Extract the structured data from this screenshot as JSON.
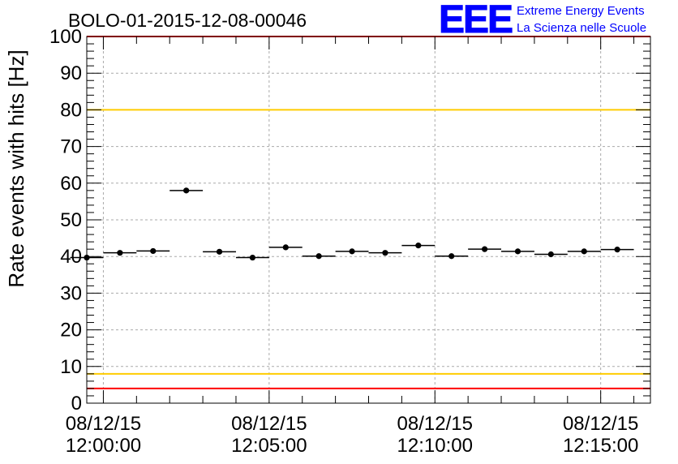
{
  "chart_data": {
    "type": "scatter",
    "title": "BOLO-01-2015-12-08-00046",
    "ylabel": "Rate events with hits [Hz]",
    "xlabel": "",
    "ylim": [
      0,
      100
    ],
    "yticks": [
      0,
      10,
      20,
      30,
      40,
      50,
      60,
      70,
      80,
      90,
      100
    ],
    "xlim": [
      "08/12/15 11:59:30",
      "08/12/15 12:16:30"
    ],
    "xticks": [
      {
        "date": "08/12/15",
        "time": "12:00:00"
      },
      {
        "date": "08/12/15",
        "time": "12:05:00"
      },
      {
        "date": "08/12/15",
        "time": "12:10:00"
      },
      {
        "date": "08/12/15",
        "time": "12:15:00"
      }
    ],
    "grid": true,
    "bin_width": "1 min",
    "x": [
      "11:59:30",
      "12:00:30",
      "12:01:30",
      "12:02:30",
      "12:03:30",
      "12:04:30",
      "12:05:30",
      "12:06:30",
      "12:07:30",
      "12:08:30",
      "12:09:30",
      "12:10:30",
      "12:11:30",
      "12:12:30",
      "12:13:30",
      "12:14:30",
      "12:15:30"
    ],
    "values": [
      39.7,
      41.0,
      41.5,
      58.0,
      41.3,
      39.7,
      42.5,
      40.1,
      41.4,
      41.0,
      43.0,
      40.1,
      42.0,
      41.4,
      40.6,
      41.4,
      41.9
    ],
    "reference_lines": [
      {
        "y": 100,
        "color": "#ff0000"
      },
      {
        "y": 80,
        "color": "#ffcc00"
      },
      {
        "y": 8,
        "color": "#ffcc00"
      },
      {
        "y": 4,
        "color": "#ff0000"
      }
    ],
    "marker_color": "#000000"
  },
  "logo": {
    "letters": "EEE",
    "line1": "Extreme Energy Events",
    "line2": "La Scienza nelle Scuole",
    "color": "#0000ff"
  }
}
